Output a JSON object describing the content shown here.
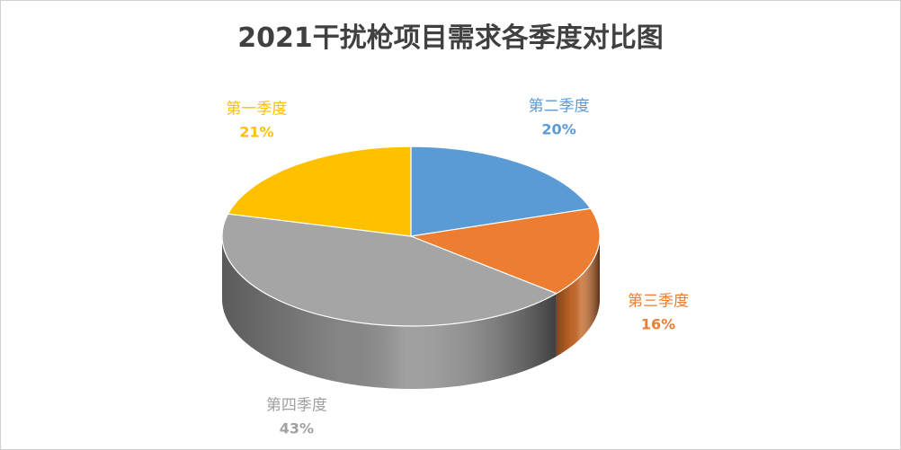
{
  "chart_data": {
    "type": "pie",
    "title": "2021干扰枪项目需求各季度对比图",
    "categories": [
      "第一季度",
      "第二季度",
      "第三季度",
      "第四季度"
    ],
    "values": [
      21,
      20,
      16,
      43
    ],
    "percent_labels": [
      "21%",
      "20%",
      "16%",
      "43%"
    ],
    "colors": [
      "#FFC000",
      "#5B9BD5",
      "#ED7D31",
      "#A5A5A5"
    ],
    "style": "3d-pie",
    "legend": "none"
  }
}
